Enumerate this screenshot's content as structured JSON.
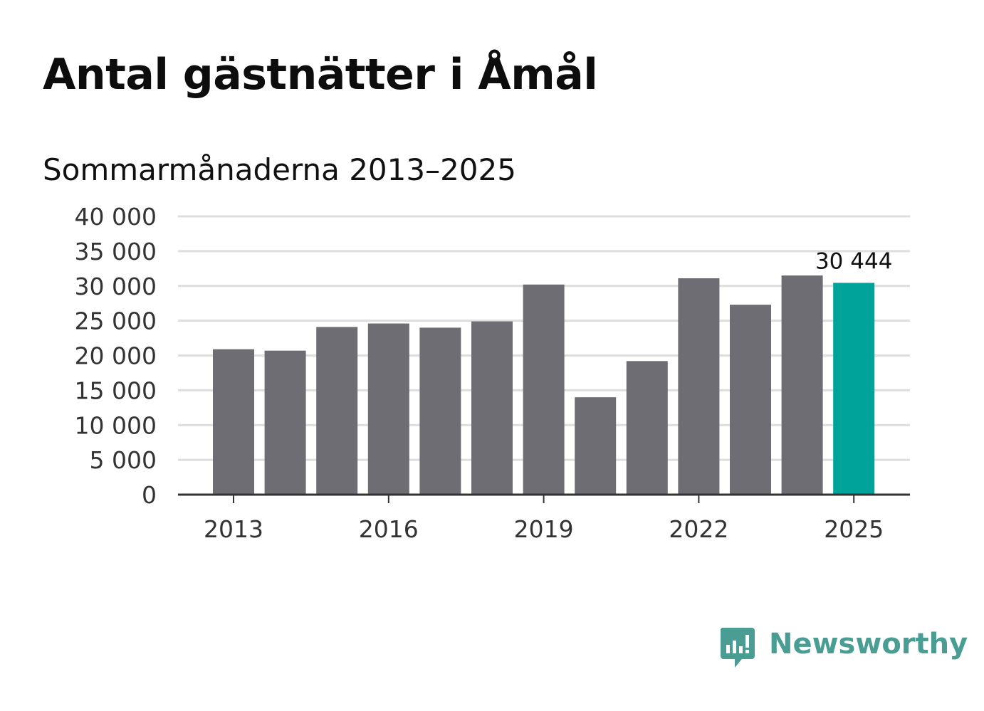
{
  "chart_data": {
    "type": "bar",
    "title": "Antal gästnätter i Åmål",
    "subtitle": "Sommarmånaderna 2013–2025",
    "categories": [
      "2013",
      "2014",
      "2015",
      "2016",
      "2017",
      "2018",
      "2019",
      "2020",
      "2021",
      "2022",
      "2023",
      "2024",
      "2025"
    ],
    "values": [
      20900,
      20700,
      24100,
      24600,
      24000,
      24900,
      30200,
      14000,
      19200,
      31100,
      27300,
      31500,
      30444
    ],
    "ylim": [
      0,
      40000
    ],
    "yticks": [
      0,
      5000,
      10000,
      15000,
      20000,
      25000,
      30000,
      35000,
      40000
    ],
    "ytick_labels": [
      "0",
      "5 000",
      "10 000",
      "15 000",
      "20 000",
      "25 000",
      "30 000",
      "35 000",
      "40 000"
    ],
    "xtick_labels": [
      "2013",
      "2016",
      "2019",
      "2022",
      "2025"
    ],
    "highlight_index": 12,
    "highlight_label": "30 444",
    "grid": true,
    "colors": {
      "bar": "#6e6d73",
      "highlight": "#00a399",
      "grid": "#dddddd",
      "axis": "#333333"
    }
  },
  "brand": {
    "name": "Newsworthy",
    "color": "#4a9d93"
  }
}
